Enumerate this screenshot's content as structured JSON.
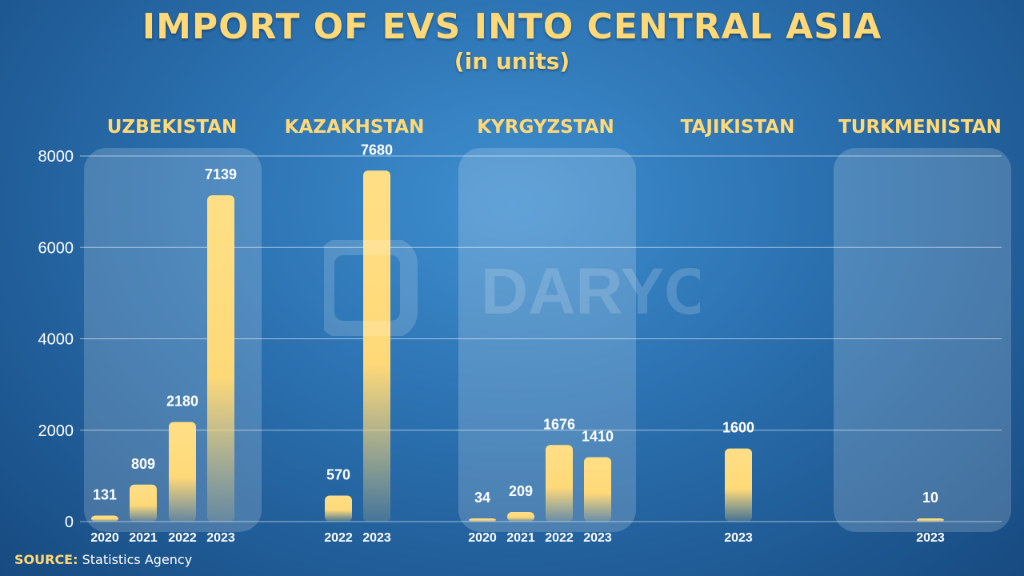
{
  "title": "IMPORT OF EVS INTO CENTRAL ASIA",
  "subtitle": "(in units)",
  "source": {
    "label": "SOURCE:",
    "text": "Statistics Agency"
  },
  "watermark": "DARYO",
  "colors": {
    "bar": "#ffd978",
    "label": "#ffd978",
    "text": "#ffffff",
    "panel": "rgba(255,255,255,0.18)"
  },
  "chart_data": {
    "type": "bar",
    "title": "IMPORT OF EVS INTO CENTRAL ASIA",
    "subtitle": "(in units)",
    "ylim": [
      0,
      8000
    ],
    "yticks": [
      0,
      2000,
      4000,
      6000,
      8000
    ],
    "grid": true,
    "groups": [
      {
        "name": "UZBEKISTAN",
        "panel": true,
        "bars": [
          {
            "year": "2020",
            "value": 131
          },
          {
            "year": "2021",
            "value": 809
          },
          {
            "year": "2022",
            "value": 2180
          },
          {
            "year": "2023",
            "value": 7139
          }
        ]
      },
      {
        "name": "KAZAKHSTAN",
        "panel": false,
        "bars": [
          {
            "year": "2022",
            "value": 570
          },
          {
            "year": "2023",
            "value": 7680
          }
        ]
      },
      {
        "name": "KYRGYZSTAN",
        "panel": true,
        "bars": [
          {
            "year": "2020",
            "value": 34
          },
          {
            "year": "2021",
            "value": 209
          },
          {
            "year": "2022",
            "value": 1676
          },
          {
            "year": "2023",
            "value": 1410
          }
        ]
      },
      {
        "name": "TAJIKISTAN",
        "panel": false,
        "bars": [
          {
            "year": "2023",
            "value": 1600
          }
        ]
      },
      {
        "name": "TURKMENISTAN",
        "panel": true,
        "bars": [
          {
            "year": "2023",
            "value": 10
          }
        ]
      }
    ]
  }
}
